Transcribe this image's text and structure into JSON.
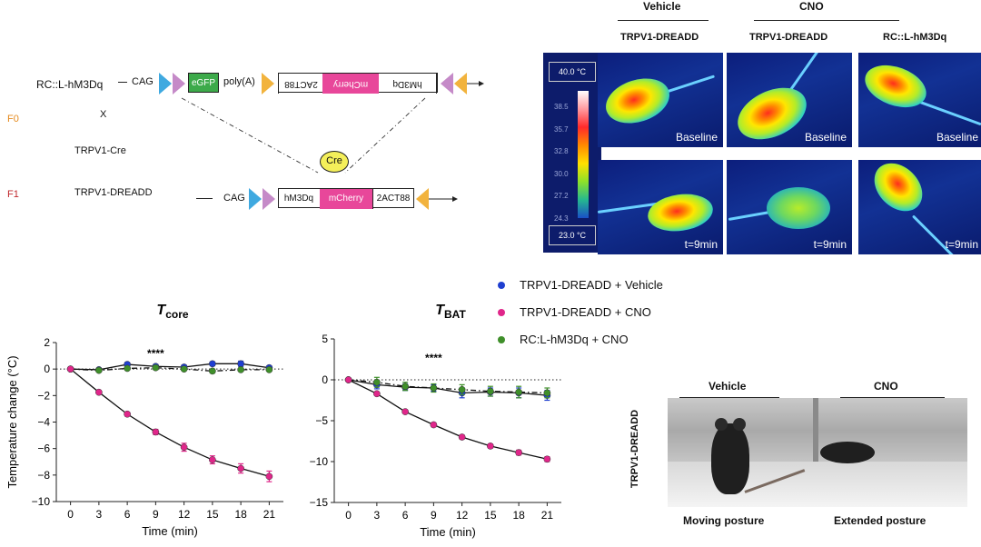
{
  "construct": {
    "row1_label": "RC::L-hM3Dq",
    "f0_label": "F0",
    "cross": "X",
    "cre_line": "TRPV1-Cre",
    "f1_label": "F1",
    "f1_line": "TRPV1-DREADD",
    "cag": "CAG",
    "egfp": "eGFP",
    "polya": "poly(A)",
    "twoact88_flipped": "2ACT88",
    "mcherry_flipped": "mCherry",
    "hm3dq_flipped": "hM3Dq",
    "cre_bubble": "Cre",
    "hm3dq": "hM3Dq",
    "mcherry": "mCherry",
    "twoact88": "2ACT88",
    "colors": {
      "egfp": "#3daa4a",
      "mcherry": "#e8479a",
      "triangle_blue": "#3fa9e0",
      "triangle_pink": "#c58ac8",
      "triangle_orange": "#f2b33d",
      "cre_fill": "#f4ef5a"
    }
  },
  "thermal": {
    "group_vehicle": "Vehicle",
    "group_cno": "CNO",
    "col1": "TRPV1-DREADD",
    "col2": "TRPV1-DREADD",
    "col3": "RC::L-hM3Dq",
    "scale_max": "40.0 °C",
    "scale_min": "23.0 °C",
    "scale_ticks": [
      "38.5",
      "35.7",
      "32.8",
      "30.0",
      "27.2",
      "24.3"
    ],
    "baseline": "Baseline",
    "t9": "t=9min"
  },
  "legend": {
    "items": [
      {
        "label": "TRPV1-DREADD + Vehicle",
        "color": "#1f3fd0"
      },
      {
        "label": "TRPV1-DREADD + CNO",
        "color": "#e0268a"
      },
      {
        "label": "RC:L-hM3Dq + CNO",
        "color": "#3f8f2a"
      }
    ]
  },
  "chart_data": [
    {
      "type": "line",
      "title": "T",
      "title_sub": "core",
      "xlabel": "Time (min)",
      "ylabel": "Temperature change (°C)",
      "x": [
        0,
        3,
        6,
        9,
        12,
        15,
        18,
        21
      ],
      "xlim": [
        -1.5,
        22.5
      ],
      "ylim": [
        -10,
        2
      ],
      "yticks": [
        2,
        0,
        -2,
        -4,
        -6,
        -8,
        -10
      ],
      "ytick_labels": [
        "2",
        "0",
        "−2",
        "−4",
        "−6",
        "−8",
        "−10"
      ],
      "annotation": "****",
      "annotation_pos": {
        "x": 9,
        "y": 0.9
      },
      "series": [
        {
          "name": "TRPV1-DREADD + Vehicle",
          "color": "#1f3fd0",
          "values": [
            0,
            -0.05,
            0.35,
            0.2,
            0.15,
            0.4,
            0.4,
            0.1
          ],
          "errors": [
            0,
            0.1,
            0.15,
            0.15,
            0.15,
            0.15,
            0.2,
            0.15
          ],
          "dash": "solid"
        },
        {
          "name": "TRPV1-DREADD + CNO",
          "color": "#e0268a",
          "values": [
            0,
            -1.75,
            -3.4,
            -4.75,
            -5.9,
            -6.85,
            -7.5,
            -8.1
          ],
          "errors": [
            0,
            0.1,
            0.15,
            0.2,
            0.3,
            0.3,
            0.35,
            0.4
          ],
          "dash": "solid"
        },
        {
          "name": "RC:L-hM3Dq + CNO",
          "color": "#3f8f2a",
          "values": [
            0,
            -0.1,
            0.05,
            0.1,
            0.0,
            -0.15,
            -0.05,
            -0.05
          ],
          "errors": [
            0,
            0.1,
            0.1,
            0.15,
            0.1,
            0.15,
            0.1,
            0.1
          ],
          "dash": "dashdot"
        }
      ]
    },
    {
      "type": "line",
      "title": "T",
      "title_sub": "BAT",
      "xlabel": "Time (min)",
      "ylabel": "",
      "x": [
        0,
        3,
        6,
        9,
        12,
        15,
        18,
        21
      ],
      "xlim": [
        -1.5,
        22.5
      ],
      "ylim": [
        -15,
        5
      ],
      "yticks": [
        5,
        0,
        -5,
        -10,
        -15
      ],
      "ytick_labels": [
        "5",
        "0",
        "−5",
        "−10",
        "−15"
      ],
      "annotation": "****",
      "annotation_pos": {
        "x": 9,
        "y": 2.2
      },
      "series": [
        {
          "name": "TRPV1-DREADD + Vehicle",
          "color": "#1f3fd0",
          "values": [
            0,
            -0.6,
            -0.9,
            -1.0,
            -1.6,
            -1.5,
            -1.6,
            -1.9
          ],
          "errors": [
            0,
            0.5,
            0.4,
            0.4,
            0.6,
            0.5,
            0.6,
            0.6
          ],
          "dash": "solid"
        },
        {
          "name": "TRPV1-DREADD + CNO",
          "color": "#e0268a",
          "values": [
            0,
            -1.7,
            -3.9,
            -5.5,
            -7.0,
            -8.1,
            -8.9,
            -9.7
          ],
          "errors": [
            0,
            0.2,
            0.2,
            0.25,
            0.25,
            0.25,
            0.3,
            0.3
          ],
          "dash": "solid"
        },
        {
          "name": "RC:L-hM3Dq + CNO",
          "color": "#3f8f2a",
          "values": [
            0,
            -0.3,
            -0.8,
            -1.0,
            -1.2,
            -1.4,
            -1.5,
            -1.6
          ],
          "errors": [
            0,
            0.6,
            0.5,
            0.5,
            0.6,
            0.6,
            0.7,
            0.6
          ],
          "dash": "dashdot"
        }
      ]
    }
  ],
  "photo": {
    "row_label": "TRPV1-DREADD",
    "vehicle": "Vehicle",
    "cno": "CNO",
    "moving": "Moving posture",
    "extended": "Extended posture"
  }
}
